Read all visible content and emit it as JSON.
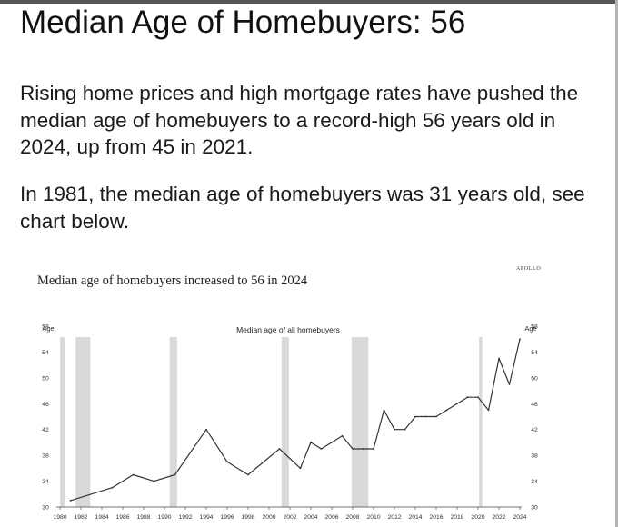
{
  "heading": "Median Age of Homebuyers: 56",
  "paragraphs": [
    "Rising home prices and high mortgage rates have pushed the median age of homebuyers to a record-high 56 years old in 2024, up from 45 in 2021.",
    "In 1981, the median age of homebuyers was 31 years old, see chart below."
  ],
  "chart_data": {
    "type": "line",
    "title": "Median age of homebuyers increased to 56 in 2024",
    "brand": "APOLLO",
    "inner_title": "Median age of all homebuyers",
    "ylabel_left": "Age",
    "ylabel_right": "Age",
    "ylim": [
      30,
      58
    ],
    "xlim": [
      1980,
      2024
    ],
    "yticks": [
      "30",
      "34",
      "38",
      "42",
      "46",
      "50",
      "54",
      "58"
    ],
    "xticks": [
      "1980",
      "1982",
      "1984",
      "1986",
      "1988",
      "1990",
      "1992",
      "1994",
      "1996",
      "1998",
      "2000",
      "2002",
      "2004",
      "2006",
      "2008",
      "2010",
      "2012",
      "2014",
      "2016",
      "2018",
      "2020",
      "2022",
      "2024"
    ],
    "grid": false,
    "recession_shading": [
      {
        "start": 1980.0,
        "end": 1980.5
      },
      {
        "start": 1981.5,
        "end": 1982.9
      },
      {
        "start": 1990.5,
        "end": 1991.2
      },
      {
        "start": 2001.2,
        "end": 2001.9
      },
      {
        "start": 2007.9,
        "end": 2009.5
      },
      {
        "start": 2020.1,
        "end": 2020.4
      }
    ],
    "x": [
      1981,
      1985,
      1987,
      1989,
      1991,
      1994,
      1996,
      1998,
      2001,
      2003,
      2004,
      2005,
      2006,
      2007,
      2008,
      2009,
      2010,
      2011,
      2012,
      2013,
      2014,
      2015,
      2016,
      2017,
      2018,
      2019,
      2020,
      2021,
      2022,
      2023,
      2024
    ],
    "values": [
      31,
      33,
      35,
      34,
      35,
      42,
      37,
      35,
      39,
      36,
      40,
      39,
      40,
      41,
      39,
      39,
      39,
      45,
      42,
      42,
      44,
      44,
      44,
      45,
      46,
      47,
      47,
      45,
      53,
      49,
      56
    ],
    "colors": {
      "line": "#333333",
      "shading": "#d9d9d9",
      "axis": "#444444"
    }
  }
}
